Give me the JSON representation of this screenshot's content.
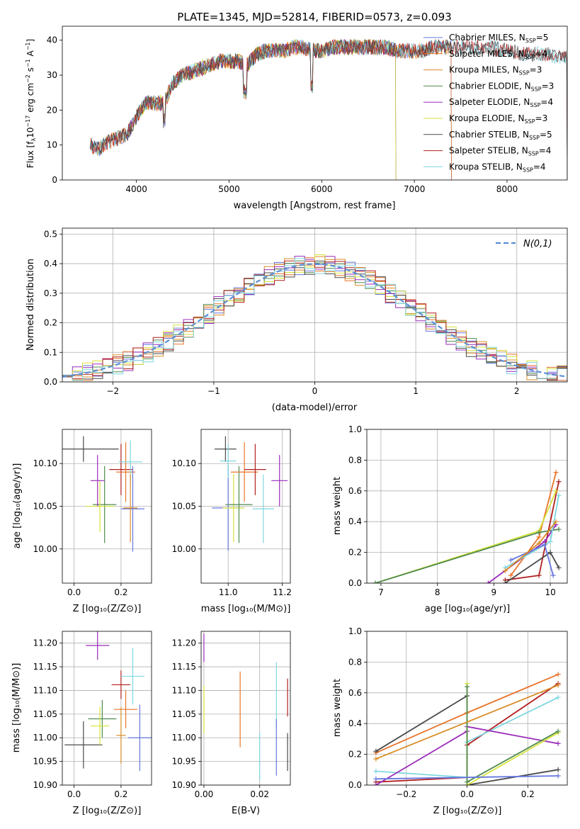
{
  "figure_title": "PLATE=1345, MJD=52814, FIBERID=0573, z=0.093",
  "colors": {
    "tab_blue": "#1f77b4",
    "tab_orange": "#ff7f0e",
    "model_colors": [
      "#6677dd",
      "#e8732a",
      "#d98c25",
      "#4f8a4f",
      "#9a2aba",
      "#d6e23a",
      "#4a4a4a",
      "#b21f1f",
      "#7fd6e0"
    ],
    "gauss": "#5b8ed6",
    "grid": "#b0b0b0"
  },
  "chart_data": [
    {
      "id": "spectrum",
      "type": "line",
      "title": "PLATE=1345, MJD=52814, FIBERID=0573, z=0.093",
      "xlabel": "wavelength [Angstrom, rest frame]",
      "ylabel": "Flux [f_λ 10^-17 erg cm^-2 s^-1 A^-1]",
      "xlim": [
        3200,
        8650
      ],
      "ylim": [
        0,
        44
      ],
      "xticks": [
        4000,
        5000,
        6000,
        7000,
        8000
      ],
      "yticks": [
        0,
        10,
        20,
        30,
        40
      ],
      "grid": false,
      "legend_position": "upper-right",
      "continuum": [
        [
          3500,
          10
        ],
        [
          3600,
          9
        ],
        [
          3700,
          11
        ],
        [
          3800,
          12
        ],
        [
          3900,
          13
        ],
        [
          4000,
          18
        ],
        [
          4100,
          22
        ],
        [
          4200,
          22
        ],
        [
          4300,
          22
        ],
        [
          4400,
          28
        ],
        [
          4500,
          30
        ],
        [
          4600,
          31
        ],
        [
          4700,
          32
        ],
        [
          4800,
          33
        ],
        [
          4900,
          34
        ],
        [
          5000,
          34
        ],
        [
          5100,
          34
        ],
        [
          5200,
          33
        ],
        [
          5300,
          36
        ],
        [
          5400,
          37
        ],
        [
          5500,
          37
        ],
        [
          5600,
          37
        ],
        [
          5700,
          38
        ],
        [
          5800,
          38
        ],
        [
          5900,
          37
        ],
        [
          6000,
          37
        ],
        [
          6100,
          38
        ],
        [
          6200,
          38
        ],
        [
          6300,
          38
        ],
        [
          6400,
          38
        ],
        [
          6500,
          38
        ],
        [
          6600,
          38
        ],
        [
          6700,
          38
        ],
        [
          6800,
          37
        ],
        [
          6900,
          37
        ],
        [
          7000,
          37
        ],
        [
          7100,
          37
        ],
        [
          7200,
          38
        ],
        [
          7300,
          38
        ],
        [
          7400,
          38
        ],
        [
          7600,
          38
        ],
        [
          7800,
          38
        ],
        [
          8000,
          37
        ],
        [
          8200,
          36
        ],
        [
          8400,
          36
        ],
        [
          8600,
          35
        ]
      ],
      "series": [
        {
          "name": "Chabrier MILES, N_SSP=5",
          "label_main": "Chabrier MILES, N",
          "label_sub": "SSP",
          "label_tail": "=5",
          "xmin": 3500,
          "xmax": 7400
        },
        {
          "name": "Salpeter MILES, N_SSP=4",
          "label_main": "Salpeter MILES, N",
          "label_sub": "SSP",
          "label_tail": "=4",
          "xmin": 3500,
          "xmax": 7400
        },
        {
          "name": "Kroupa MILES, N_SSP=3",
          "label_main": "Kroupa MILES, N",
          "label_sub": "SSP",
          "label_tail": "=3",
          "xmin": 3500,
          "xmax": 7400
        },
        {
          "name": "Chabrier ELODIE, N_SSP=3",
          "label_main": "Chabrier ELODIE, N",
          "label_sub": "SSP",
          "label_tail": "=3",
          "xmin": 3900,
          "xmax": 6800
        },
        {
          "name": "Salpeter ELODIE, N_SSP=4",
          "label_main": "Salpeter ELODIE, N",
          "label_sub": "SSP",
          "label_tail": "=4",
          "xmin": 3900,
          "xmax": 6800
        },
        {
          "name": "Kroupa ELODIE, N_SSP=3",
          "label_main": "Kroupa ELODIE, N",
          "label_sub": "SSP",
          "label_tail": "=3",
          "xmin": 3900,
          "xmax": 6800
        },
        {
          "name": "Chabrier STELIB, N_SSP=5",
          "label_main": "Chabrier STELIB, N",
          "label_sub": "SSP",
          "label_tail": "=5",
          "xmin": 3500,
          "xmax": 8650
        },
        {
          "name": "Salpeter STELIB, N_SSP=4",
          "label_main": "Salpeter STELIB, N",
          "label_sub": "SSP",
          "label_tail": "=4",
          "xmin": 3500,
          "xmax": 8650
        },
        {
          "name": "Kroupa STELIB, N_SSP=4",
          "label_main": "Kroupa STELIB, N",
          "label_sub": "SSP",
          "label_tail": "=4",
          "xmin": 3500,
          "xmax": 8650
        }
      ]
    },
    {
      "id": "residuals",
      "type": "histogram",
      "xlabel": "(data-model)/error",
      "ylabel": "Normed distribution",
      "xlim": [
        -2.5,
        2.5
      ],
      "ylim": [
        0,
        0.52
      ],
      "xticks": [
        -2,
        -1,
        0,
        1,
        2
      ],
      "yticks": [
        0.0,
        0.1,
        0.2,
        0.3,
        0.4,
        0.5
      ],
      "grid": true,
      "legend_position": "upper-right",
      "gauss_label": "N(0,1)",
      "bin_width": 0.1
    },
    {
      "id": "age_vs_Z",
      "type": "scatter",
      "xlabel": "Z [log10(Z/Z_sun)]",
      "ylabel": "age [log10(age/yr)]",
      "xlim": [
        -0.05,
        0.33
      ],
      "ylim": [
        9.96,
        10.14
      ],
      "xticks": [
        0.0,
        0.2
      ],
      "yticks": [
        10.0,
        10.05,
        10.1
      ],
      "grid": true,
      "points": [
        {
          "x": 0.04,
          "y": 10.117,
          "xerr": 0.15,
          "yerr": 0.015,
          "c": 6
        },
        {
          "x": 0.13,
          "y": 10.052,
          "xerr": 0.05,
          "yerr": 0.045,
          "c": 3
        },
        {
          "x": 0.11,
          "y": 10.05,
          "xerr": 0.06,
          "yerr": 0.03,
          "c": 5
        },
        {
          "x": 0.1,
          "y": 10.08,
          "xerr": 0.03,
          "yerr": 0.03,
          "c": 4
        },
        {
          "x": 0.2,
          "y": 10.093,
          "xerr": 0.05,
          "yerr": 0.03,
          "c": 7
        },
        {
          "x": 0.22,
          "y": 10.09,
          "xerr": 0.04,
          "yerr": 0.035,
          "c": 1
        },
        {
          "x": 0.24,
          "y": 10.102,
          "xerr": 0.05,
          "yerr": 0.025,
          "c": 8
        },
        {
          "x": 0.25,
          "y": 10.047,
          "xerr": 0.05,
          "yerr": 0.05,
          "c": 0
        },
        {
          "x": 0.24,
          "y": 10.048,
          "xerr": 0.03,
          "yerr": 0.04,
          "c": 2
        }
      ]
    },
    {
      "id": "age_vs_mass",
      "type": "scatter",
      "xlabel": "mass [log10(M/M_sun)]",
      "ylabel": "",
      "xlim": [
        10.9,
        11.23
      ],
      "ylim": [
        9.96,
        10.14
      ],
      "xticks": [
        11.0,
        11.2
      ],
      "yticks": [
        10.0,
        10.05,
        10.1
      ],
      "grid": true,
      "points": [
        {
          "x": 10.99,
          "y": 10.117,
          "xerr": 0.04,
          "yerr": 0.015,
          "c": 6
        },
        {
          "x": 11.0,
          "y": 10.048,
          "xerr": 0.06,
          "yerr": 0.05,
          "c": 0
        },
        {
          "x": 11.02,
          "y": 10.048,
          "xerr": 0.04,
          "yerr": 0.04,
          "c": 5
        },
        {
          "x": 11.04,
          "y": 10.052,
          "xerr": 0.05,
          "yerr": 0.045,
          "c": 3
        },
        {
          "x": 11.06,
          "y": 10.09,
          "xerr": 0.05,
          "yerr": 0.035,
          "c": 1
        },
        {
          "x": 11.1,
          "y": 10.093,
          "xerr": 0.04,
          "yerr": 0.03,
          "c": 7
        },
        {
          "x": 11.13,
          "y": 10.047,
          "xerr": 0.04,
          "yerr": 0.04,
          "c": 8
        },
        {
          "x": 11.19,
          "y": 10.08,
          "xerr": 0.03,
          "yerr": 0.03,
          "c": 4
        },
        {
          "x": 11.0,
          "y": 10.103,
          "xerr": 0.03,
          "yerr": 0.02,
          "c": 8
        }
      ]
    },
    {
      "id": "massweight_vs_age",
      "type": "line",
      "xlabel": "age [log10(age/yr)]",
      "ylabel": "mass weight",
      "xlim": [
        6.75,
        10.3
      ],
      "ylim": [
        0,
        1.0
      ],
      "xticks": [
        7,
        8,
        9,
        10
      ],
      "yticks": [
        0.0,
        0.2,
        0.4,
        0.6,
        0.8,
        1.0
      ],
      "grid": true,
      "series": [
        {
          "c": 1,
          "pts": [
            [
              9.3,
              0.05
            ],
            [
              9.8,
              0.3
            ],
            [
              10.1,
              0.72
            ]
          ]
        },
        {
          "c": 7,
          "pts": [
            [
              9.2,
              0.02
            ],
            [
              9.8,
              0.05
            ],
            [
              10.15,
              0.66
            ]
          ]
        },
        {
          "c": 5,
          "pts": [
            [
              6.9,
              0.0
            ],
            [
              9.8,
              0.34
            ],
            [
              10.1,
              0.6
            ]
          ]
        },
        {
          "c": 3,
          "pts": [
            [
              6.9,
              0.0
            ],
            [
              9.8,
              0.33
            ],
            [
              10.15,
              0.35
            ]
          ]
        },
        {
          "c": 6,
          "pts": [
            [
              9.2,
              0.0
            ],
            [
              10.0,
              0.2
            ],
            [
              10.15,
              0.1
            ]
          ]
        },
        {
          "c": 4,
          "pts": [
            [
              8.9,
              0.0
            ],
            [
              9.9,
              0.27
            ],
            [
              10.1,
              0.38
            ]
          ]
        },
        {
          "c": 8,
          "pts": [
            [
              9.2,
              0.1
            ],
            [
              10.0,
              0.27
            ],
            [
              10.15,
              0.57
            ]
          ]
        },
        {
          "c": 0,
          "pts": [
            [
              9.3,
              0.15
            ],
            [
              9.9,
              0.25
            ],
            [
              10.05,
              0.05
            ]
          ]
        },
        {
          "c": 2,
          "pts": [
            [
              9.2,
              0.08
            ],
            [
              9.8,
              0.26
            ],
            [
              10.1,
              0.4
            ]
          ]
        }
      ]
    },
    {
      "id": "mass_vs_Z",
      "type": "scatter",
      "xlabel": "Z [log10(Z/Z_sun)]",
      "ylabel": "mass [log10(M/M_sun)]",
      "xlim": [
        -0.05,
        0.33
      ],
      "ylim": [
        10.9,
        11.225
      ],
      "xticks": [
        0.0,
        0.2
      ],
      "yticks": [
        10.9,
        10.95,
        11.0,
        11.05,
        11.1,
        11.15,
        11.2
      ],
      "grid": true,
      "points": [
        {
          "x": 0.04,
          "y": 10.985,
          "xerr": 0.08,
          "yerr": 0.05,
          "c": 6
        },
        {
          "x": 0.12,
          "y": 11.04,
          "xerr": 0.06,
          "yerr": 0.04,
          "c": 3
        },
        {
          "x": 0.11,
          "y": 11.025,
          "xerr": 0.04,
          "yerr": 0.04,
          "c": 5
        },
        {
          "x": 0.1,
          "y": 11.195,
          "xerr": 0.05,
          "yerr": 0.03,
          "c": 4
        },
        {
          "x": 0.2,
          "y": 11.112,
          "xerr": 0.04,
          "yerr": 0.03,
          "c": 7
        },
        {
          "x": 0.22,
          "y": 11.06,
          "xerr": 0.05,
          "yerr": 0.04,
          "c": 1
        },
        {
          "x": 0.25,
          "y": 11.13,
          "xerr": 0.05,
          "yerr": 0.06,
          "c": 8
        },
        {
          "x": 0.28,
          "y": 11.0,
          "xerr": 0.05,
          "yerr": 0.07,
          "c": 0
        },
        {
          "x": 0.2,
          "y": 11.005,
          "xerr": 0.02,
          "yerr": 0.06,
          "c": 2
        }
      ]
    },
    {
      "id": "mass_vs_EBV",
      "type": "scatter",
      "xlabel": "E(B-V)",
      "ylabel": "",
      "xlim": [
        -0.001,
        0.031
      ],
      "ylim": [
        10.9,
        11.225
      ],
      "xticks": [
        0.0,
        0.02
      ],
      "yticks": [
        10.9,
        10.95,
        11.0,
        11.05,
        11.1,
        11.15,
        11.2
      ],
      "grid": true,
      "points": [
        {
          "x": 0.0,
          "y": 11.19,
          "xerr": 0,
          "yerr": 0.03,
          "c": 4
        },
        {
          "x": 0.0,
          "y": 11.06,
          "xerr": 0,
          "yerr": 0.05,
          "c": 5
        },
        {
          "x": 0.013,
          "y": 11.06,
          "xerr": 0,
          "yerr": 0.08,
          "c": 1
        },
        {
          "x": 0.02,
          "y": 10.96,
          "xerr": 0,
          "yerr": 0.05,
          "c": 8
        },
        {
          "x": 0.026,
          "y": 11.09,
          "xerr": 0,
          "yerr": 0.07,
          "c": 8
        },
        {
          "x": 0.026,
          "y": 10.98,
          "xerr": 0,
          "yerr": 0.06,
          "c": 0
        },
        {
          "x": 0.03,
          "y": 11.085,
          "xerr": 0,
          "yerr": 0.04,
          "c": 7
        },
        {
          "x": 0.03,
          "y": 10.97,
          "xerr": 0,
          "yerr": 0.04,
          "c": 6
        }
      ]
    },
    {
      "id": "massweight_vs_Z",
      "type": "line",
      "xlabel": "Z [log10(Z/Z_sun)]",
      "ylabel": "mass weight",
      "xlim": [
        -0.33,
        0.33
      ],
      "ylim": [
        0,
        1.0
      ],
      "xticks": [
        -0.2,
        0.0,
        0.2
      ],
      "yticks": [
        0.0,
        0.2,
        0.4,
        0.6,
        0.8,
        1.0
      ],
      "grid": true,
      "series": [
        {
          "c": 1,
          "pts": [
            [
              -0.3,
              0.21
            ],
            [
              0.0,
              0.47
            ],
            [
              0.3,
              0.72
            ]
          ]
        },
        {
          "c": 6,
          "pts": [
            [
              -0.3,
              0.22
            ],
            [
              0.0,
              0.58
            ],
            [
              0.0,
              0.0
            ],
            [
              0.3,
              0.1
            ]
          ]
        },
        {
          "c": 7,
          "pts": [
            [
              -0.3,
              0.02
            ],
            [
              0.0,
              0.05
            ],
            [
              0.0,
              0.26
            ],
            [
              0.3,
              0.66
            ]
          ]
        },
        {
          "c": 8,
          "pts": [
            [
              -0.3,
              0.09
            ],
            [
              0.0,
              0.05
            ],
            [
              0.0,
              0.28
            ],
            [
              0.3,
              0.57
            ]
          ]
        },
        {
          "c": 4,
          "pts": [
            [
              -0.3,
              0.0
            ],
            [
              0.0,
              0.35
            ],
            [
              0.0,
              0.38
            ],
            [
              0.3,
              0.27
            ]
          ]
        },
        {
          "c": 5,
          "pts": [
            [
              0.0,
              0.66
            ],
            [
              0.0,
              0.0
            ],
            [
              0.3,
              0.34
            ]
          ]
        },
        {
          "c": 3,
          "pts": [
            [
              0.0,
              0.64
            ],
            [
              0.0,
              0.02
            ],
            [
              0.3,
              0.35
            ]
          ]
        },
        {
          "c": 0,
          "pts": [
            [
              -0.3,
              0.04
            ],
            [
              0.3,
              0.06
            ]
          ]
        },
        {
          "c": 2,
          "pts": [
            [
              -0.3,
              0.17
            ],
            [
              0.3,
              0.65
            ]
          ]
        }
      ]
    }
  ]
}
